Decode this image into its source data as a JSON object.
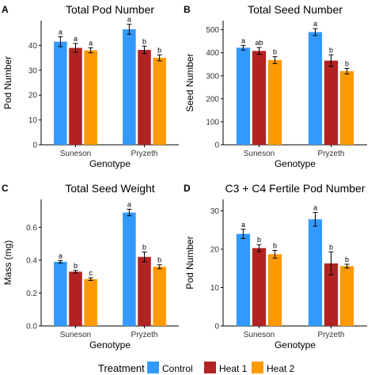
{
  "legend": {
    "title": "Treatment",
    "items": [
      {
        "label": "Control",
        "color": "#3399ff"
      },
      {
        "label": "Heat 1",
        "color": "#b22222"
      },
      {
        "label": "Heat 2",
        "color": "#ff9900"
      }
    ]
  },
  "chart_data": [
    {
      "type": "bar",
      "panel_letter": "A",
      "title": "Total Pod Number",
      "xlabel": "Genotype",
      "ylabel": "Pod Number",
      "categories": [
        "Suneson",
        "Pryzeth"
      ],
      "ylim": [
        0,
        50
      ],
      "yticks": [
        0,
        10,
        20,
        30,
        40
      ],
      "grid": false,
      "series": [
        {
          "name": "Control",
          "values": [
            41.5,
            46.5
          ],
          "errors": [
            2.0,
            2.0
          ],
          "letters": [
            "a",
            "a"
          ]
        },
        {
          "name": "Heat 1",
          "values": [
            39.0,
            38.2
          ],
          "errors": [
            1.8,
            1.5
          ],
          "letters": [
            "a",
            "b"
          ]
        },
        {
          "name": "Heat 2",
          "values": [
            38.0,
            35.0
          ],
          "errors": [
            1.0,
            1.2
          ],
          "letters": [
            "a",
            "b"
          ]
        }
      ]
    },
    {
      "type": "bar",
      "panel_letter": "B",
      "title": "Total Seed Number",
      "xlabel": "Genotype",
      "ylabel": "Seed Number",
      "categories": [
        "Suneson",
        "Pryzeth"
      ],
      "ylim": [
        0,
        540
      ],
      "yticks": [
        0,
        100,
        200,
        300,
        400,
        500
      ],
      "grid": false,
      "series": [
        {
          "name": "Control",
          "values": [
            422,
            490
          ],
          "errors": [
            10,
            15
          ],
          "letters": [
            "a",
            "a"
          ]
        },
        {
          "name": "Heat 1",
          "values": [
            408,
            366
          ],
          "errors": [
            15,
            25
          ],
          "letters": [
            "ab",
            "b"
          ]
        },
        {
          "name": "Heat 2",
          "values": [
            368,
            320
          ],
          "errors": [
            15,
            12
          ],
          "letters": [
            "b",
            "b"
          ]
        }
      ]
    },
    {
      "type": "bar",
      "panel_letter": "C",
      "title": "Total Seed Weight",
      "xlabel": "Genotype",
      "ylabel": "Mass (mg)",
      "categories": [
        "Suneson",
        "Pryzeth"
      ],
      "ylim": [
        0,
        0.77
      ],
      "yticks": [
        0.0,
        0.2,
        0.4,
        0.6
      ],
      "ytick_labels": [
        "0.0",
        "0.2",
        "0.4",
        "0.6"
      ],
      "grid": false,
      "series": [
        {
          "name": "Control",
          "values": [
            0.39,
            0.69
          ],
          "errors": [
            0.008,
            0.02
          ],
          "letters": [
            "a",
            "a"
          ]
        },
        {
          "name": "Heat 1",
          "values": [
            0.33,
            0.42
          ],
          "errors": [
            0.008,
            0.03
          ],
          "letters": [
            "b",
            "b"
          ]
        },
        {
          "name": "Heat 2",
          "values": [
            0.285,
            0.36
          ],
          "errors": [
            0.008,
            0.012
          ],
          "letters": [
            "c",
            "b"
          ]
        }
      ]
    },
    {
      "type": "bar",
      "panel_letter": "D",
      "title": "C3 + C4 Fertile Pod Number",
      "xlabel": "Genotype",
      "ylabel": "Pod Number",
      "categories": [
        "Suneson",
        "Pryzeth"
      ],
      "ylim": [
        0,
        33
      ],
      "yticks": [
        0,
        10,
        20,
        30
      ],
      "grid": false,
      "series": [
        {
          "name": "Control",
          "values": [
            24.0,
            27.8
          ],
          "errors": [
            1.2,
            1.8
          ],
          "letters": [
            "a",
            "a"
          ]
        },
        {
          "name": "Heat 1",
          "values": [
            20.3,
            16.3
          ],
          "errors": [
            0.9,
            3.0
          ],
          "letters": [
            "b",
            "b"
          ]
        },
        {
          "name": "Heat 2",
          "values": [
            18.7,
            15.6
          ],
          "errors": [
            1.0,
            0.5
          ],
          "letters": [
            "b",
            "b"
          ]
        }
      ]
    }
  ]
}
